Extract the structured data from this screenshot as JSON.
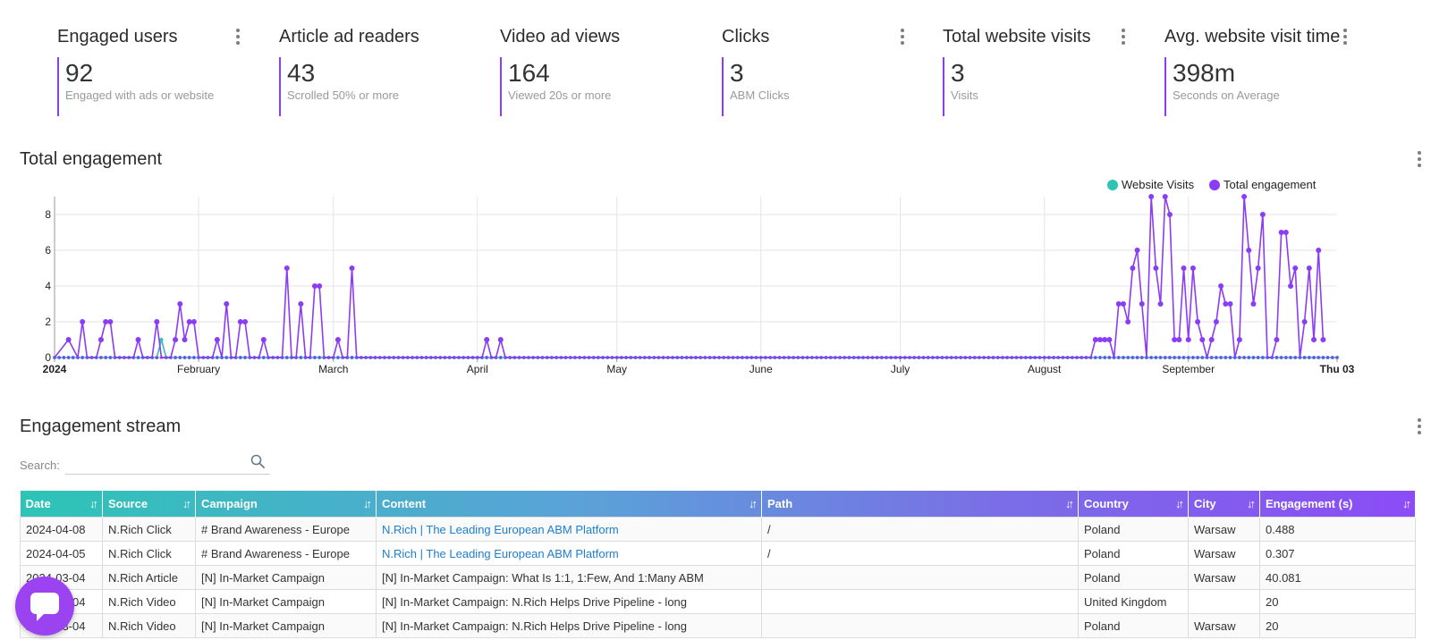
{
  "kpis": [
    {
      "title": "Engaged users",
      "value": "92",
      "subtitle": "Engaged with ads or website",
      "menu": true
    },
    {
      "title": "Article ad readers",
      "value": "43",
      "subtitle": "Scrolled 50% or more",
      "menu": false
    },
    {
      "title": "Video ad views",
      "value": "164",
      "subtitle": "Viewed 20s or more",
      "menu": false
    },
    {
      "title": "Clicks",
      "value": "3",
      "subtitle": "ABM Clicks",
      "menu": true
    },
    {
      "title": "Total website visits",
      "value": "3",
      "subtitle": "Visits",
      "menu": true
    },
    {
      "title": "Avg. website visit time",
      "value": "398m",
      "subtitle": "Seconds on Average",
      "menu": true
    }
  ],
  "engagement_section": {
    "title": "Total engagement"
  },
  "stream_section": {
    "title": "Engagement stream"
  },
  "search": {
    "label": "Search:",
    "placeholder": ""
  },
  "colors": {
    "accent": "#8b3cf6",
    "website_visits": "#2cc5b3",
    "total_engagement": "#8b3cf6"
  },
  "chart_data": {
    "type": "line",
    "x_tick_labels": [
      "2024",
      "February",
      "March",
      "April",
      "May",
      "June",
      "July",
      "August",
      "September",
      "Thu 03"
    ],
    "ylim": [
      0,
      9
    ],
    "y_ticks": [
      0,
      2,
      4,
      6,
      8
    ],
    "grid": true,
    "legend_position": "top-right",
    "series": [
      {
        "name": "Website Visits",
        "color": "#2cc5b3",
        "points": [
          [
            "2024-01-24",
            1
          ]
        ]
      },
      {
        "name": "Total engagement",
        "color": "#8b3cf6",
        "points": [
          [
            "2024-01-01",
            0
          ],
          [
            "2024-01-04",
            1
          ],
          [
            "2024-01-06",
            0
          ],
          [
            "2024-01-07",
            2
          ],
          [
            "2024-01-08",
            0
          ],
          [
            "2024-01-10",
            0
          ],
          [
            "2024-01-11",
            1
          ],
          [
            "2024-01-12",
            2
          ],
          [
            "2024-01-13",
            2
          ],
          [
            "2024-01-14",
            0
          ],
          [
            "2024-01-18",
            0
          ],
          [
            "2024-01-19",
            1
          ],
          [
            "2024-01-20",
            0
          ],
          [
            "2024-01-22",
            0
          ],
          [
            "2024-01-23",
            2
          ],
          [
            "2024-01-24",
            0
          ],
          [
            "2024-01-26",
            0
          ],
          [
            "2024-01-27",
            1
          ],
          [
            "2024-01-28",
            3
          ],
          [
            "2024-01-29",
            1
          ],
          [
            "2024-01-30",
            2
          ],
          [
            "2024-01-31",
            2
          ],
          [
            "2024-02-01",
            0
          ],
          [
            "2024-02-04",
            0
          ],
          [
            "2024-02-05",
            1
          ],
          [
            "2024-02-06",
            0
          ],
          [
            "2024-02-07",
            3
          ],
          [
            "2024-02-08",
            0
          ],
          [
            "2024-02-09",
            0
          ],
          [
            "2024-02-10",
            2
          ],
          [
            "2024-02-11",
            2
          ],
          [
            "2024-02-12",
            0
          ],
          [
            "2024-02-14",
            0
          ],
          [
            "2024-02-15",
            1
          ],
          [
            "2024-02-16",
            0
          ],
          [
            "2024-02-19",
            0
          ],
          [
            "2024-02-20",
            5
          ],
          [
            "2024-02-21",
            0
          ],
          [
            "2024-02-22",
            0
          ],
          [
            "2024-02-23",
            3
          ],
          [
            "2024-02-24",
            0
          ],
          [
            "2024-02-25",
            0
          ],
          [
            "2024-02-26",
            4
          ],
          [
            "2024-02-27",
            4
          ],
          [
            "2024-02-28",
            0
          ],
          [
            "2024-03-01",
            0
          ],
          [
            "2024-03-02",
            1
          ],
          [
            "2024-03-03",
            0
          ],
          [
            "2024-03-04",
            0
          ],
          [
            "2024-03-05",
            5
          ],
          [
            "2024-03-06",
            0
          ],
          [
            "2024-04-02",
            0
          ],
          [
            "2024-04-03",
            1
          ],
          [
            "2024-04-04",
            0
          ],
          [
            "2024-04-05",
            0
          ],
          [
            "2024-04-06",
            1
          ],
          [
            "2024-04-07",
            0
          ],
          [
            "2024-08-11",
            0
          ],
          [
            "2024-08-12",
            1
          ],
          [
            "2024-08-13",
            1
          ],
          [
            "2024-08-14",
            1
          ],
          [
            "2024-08-15",
            1
          ],
          [
            "2024-08-16",
            0
          ],
          [
            "2024-08-17",
            3
          ],
          [
            "2024-08-18",
            3
          ],
          [
            "2024-08-19",
            2
          ],
          [
            "2024-08-20",
            5
          ],
          [
            "2024-08-21",
            6
          ],
          [
            "2024-08-22",
            3
          ],
          [
            "2024-08-23",
            0
          ],
          [
            "2024-08-24",
            9
          ],
          [
            "2024-08-25",
            5
          ],
          [
            "2024-08-26",
            3
          ],
          [
            "2024-08-27",
            9
          ],
          [
            "2024-08-28",
            8
          ],
          [
            "2024-08-29",
            1
          ],
          [
            "2024-08-30",
            1
          ],
          [
            "2024-08-31",
            5
          ],
          [
            "2024-09-01",
            1
          ],
          [
            "2024-09-02",
            5
          ],
          [
            "2024-09-03",
            2
          ],
          [
            "2024-09-04",
            1
          ],
          [
            "2024-09-05",
            0
          ],
          [
            "2024-09-06",
            1
          ],
          [
            "2024-09-07",
            2
          ],
          [
            "2024-09-08",
            4
          ],
          [
            "2024-09-09",
            3
          ],
          [
            "2024-09-10",
            3
          ],
          [
            "2024-09-11",
            0
          ],
          [
            "2024-09-12",
            1
          ],
          [
            "2024-09-13",
            9
          ],
          [
            "2024-09-14",
            6
          ],
          [
            "2024-09-15",
            3
          ],
          [
            "2024-09-16",
            5
          ],
          [
            "2024-09-17",
            8
          ],
          [
            "2024-09-18",
            0
          ],
          [
            "2024-09-19",
            0
          ],
          [
            "2024-09-20",
            1
          ],
          [
            "2024-09-21",
            7
          ],
          [
            "2024-09-22",
            7
          ],
          [
            "2024-09-23",
            4
          ],
          [
            "2024-09-24",
            5
          ],
          [
            "2024-09-25",
            0
          ],
          [
            "2024-09-26",
            2
          ],
          [
            "2024-09-27",
            5
          ],
          [
            "2024-09-28",
            1
          ],
          [
            "2024-09-29",
            6
          ],
          [
            "2024-09-30",
            1
          ]
        ]
      }
    ]
  },
  "table": {
    "columns": [
      "Date",
      "Source",
      "Campaign",
      "Content",
      "Path",
      "Country",
      "City",
      "Engagement (s)"
    ],
    "rows": [
      {
        "date": "2024-04-08",
        "source": "N.Rich Click",
        "campaign": "# Brand Awareness - Europe",
        "content": "N.Rich | The Leading European ABM Platform",
        "content_link": true,
        "path": "/",
        "country": "Poland",
        "city": "Warsaw",
        "engagement": "0.488"
      },
      {
        "date": "2024-04-05",
        "source": "N.Rich Click",
        "campaign": "# Brand Awareness - Europe",
        "content": "N.Rich | The Leading European ABM Platform",
        "content_link": true,
        "path": "/",
        "country": "Poland",
        "city": "Warsaw",
        "engagement": "0.307"
      },
      {
        "date": "2024-03-04",
        "source": "N.Rich Article",
        "campaign": "[N] In-Market Campaign",
        "content": "[N] In-Market Campaign: What Is 1:1, 1:Few, And 1:Many ABM",
        "content_link": false,
        "path": "",
        "country": "Poland",
        "city": "Warsaw",
        "engagement": "40.081"
      },
      {
        "date": "2024-03-04",
        "source": "N.Rich Video",
        "campaign": "[N] In-Market Campaign",
        "content": "[N] In-Market Campaign: N.Rich Helps Drive Pipeline - long",
        "content_link": false,
        "path": "",
        "country": "United Kingdom",
        "city": "",
        "engagement": "20"
      },
      {
        "date": "2024-03-04",
        "source": "N.Rich Video",
        "campaign": "[N] In-Market Campaign",
        "content": "[N] In-Market Campaign: N.Rich Helps Drive Pipeline - long",
        "content_link": false,
        "path": "",
        "country": "Poland",
        "city": "Warsaw",
        "engagement": "20"
      }
    ]
  }
}
